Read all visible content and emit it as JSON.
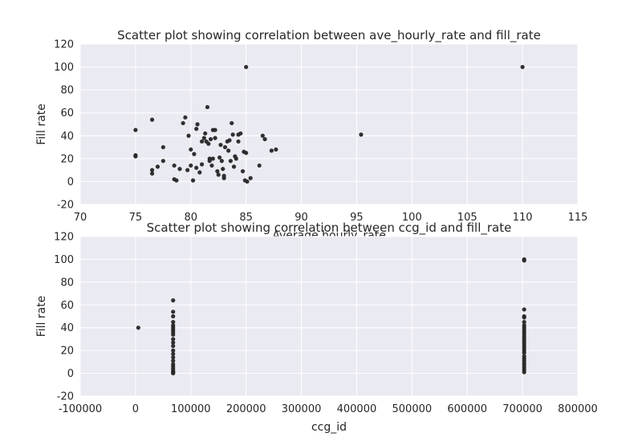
{
  "colors": {
    "background": "#eaeaf2",
    "grid": "#ffffff",
    "point": "#262626",
    "text": "#262626"
  },
  "chart_data": [
    {
      "type": "scatter",
      "title": "Scatter plot showing correlation between ave_hourly_rate and fill_rate",
      "xlabel": "Average hourly_rate",
      "ylabel": "Fill rate",
      "xlim": [
        70,
        115
      ],
      "ylim": [
        -20,
        120
      ],
      "xticks": [
        70,
        75,
        80,
        85,
        90,
        95,
        100,
        105,
        110,
        115
      ],
      "yticks": [
        -20,
        0,
        20,
        40,
        60,
        80,
        100,
        120
      ],
      "grid": true,
      "points": [
        [
          75.0,
          45
        ],
        [
          75.0,
          23
        ],
        [
          75.0,
          22
        ],
        [
          76.5,
          54
        ],
        [
          76.5,
          10
        ],
        [
          76.5,
          7
        ],
        [
          77.0,
          13
        ],
        [
          77.5,
          30
        ],
        [
          77.5,
          18
        ],
        [
          78.5,
          14
        ],
        [
          78.5,
          2
        ],
        [
          78.7,
          1
        ],
        [
          79.0,
          11
        ],
        [
          79.3,
          51
        ],
        [
          79.5,
          56
        ],
        [
          79.7,
          10
        ],
        [
          79.8,
          40
        ],
        [
          80.0,
          28
        ],
        [
          80.0,
          14
        ],
        [
          80.2,
          1
        ],
        [
          80.3,
          24
        ],
        [
          80.5,
          46
        ],
        [
          80.5,
          12
        ],
        [
          80.6,
          50
        ],
        [
          80.8,
          8
        ],
        [
          81.0,
          15
        ],
        [
          81.0,
          35
        ],
        [
          81.2,
          38
        ],
        [
          81.3,
          42
        ],
        [
          81.4,
          35
        ],
        [
          81.5,
          65
        ],
        [
          81.6,
          33
        ],
        [
          81.7,
          20
        ],
        [
          81.7,
          18
        ],
        [
          81.8,
          37
        ],
        [
          81.9,
          14
        ],
        [
          82.0,
          45
        ],
        [
          82.0,
          20
        ],
        [
          82.2,
          38
        ],
        [
          82.2,
          45
        ],
        [
          82.4,
          9
        ],
        [
          82.5,
          6
        ],
        [
          82.6,
          21
        ],
        [
          82.7,
          32
        ],
        [
          82.8,
          18
        ],
        [
          82.9,
          11
        ],
        [
          83.0,
          5
        ],
        [
          83.0,
          3
        ],
        [
          83.1,
          30
        ],
        [
          83.3,
          35
        ],
        [
          83.4,
          27
        ],
        [
          83.5,
          36
        ],
        [
          83.6,
          18
        ],
        [
          83.7,
          51
        ],
        [
          83.8,
          41
        ],
        [
          83.9,
          13
        ],
        [
          84.0,
          22
        ],
        [
          84.1,
          20
        ],
        [
          84.3,
          41
        ],
        [
          84.3,
          35
        ],
        [
          84.5,
          42
        ],
        [
          84.7,
          9
        ],
        [
          84.8,
          26
        ],
        [
          84.9,
          1
        ],
        [
          85.0,
          100
        ],
        [
          85.0,
          25
        ],
        [
          85.1,
          0
        ],
        [
          85.4,
          3
        ],
        [
          86.2,
          14
        ],
        [
          86.5,
          40
        ],
        [
          86.7,
          37
        ],
        [
          87.3,
          27
        ],
        [
          87.7,
          28
        ],
        [
          95.4,
          41
        ],
        [
          110.0,
          100
        ]
      ]
    },
    {
      "type": "scatter",
      "title": "Scatter plot showing correlation between ccg_id and fill_rate",
      "xlabel": "ccg_id",
      "ylabel": "Fill rate",
      "xlim": [
        -100000,
        800000
      ],
      "ylim": [
        -20,
        120
      ],
      "xticks": [
        -100000,
        0,
        100000,
        200000,
        300000,
        400000,
        500000,
        600000,
        700000,
        800000
      ],
      "yticks": [
        -20,
        0,
        20,
        40,
        60,
        80,
        100,
        120
      ],
      "grid": true,
      "points": [
        [
          5000,
          40
        ],
        [
          68000,
          64
        ],
        [
          68000,
          54
        ],
        [
          68000,
          50
        ],
        [
          68000,
          45
        ],
        [
          68000,
          42
        ],
        [
          68000,
          40
        ],
        [
          68000,
          38
        ],
        [
          68000,
          36
        ],
        [
          68000,
          34
        ],
        [
          68000,
          30
        ],
        [
          68000,
          27
        ],
        [
          68000,
          24
        ],
        [
          68000,
          20
        ],
        [
          68000,
          17
        ],
        [
          68000,
          14
        ],
        [
          68000,
          11
        ],
        [
          68000,
          8
        ],
        [
          68000,
          6
        ],
        [
          68000,
          4
        ],
        [
          68000,
          2
        ],
        [
          68000,
          1
        ],
        [
          68000,
          0
        ],
        [
          703000,
          100
        ],
        [
          703000,
          99
        ],
        [
          703000,
          56
        ],
        [
          703000,
          50
        ],
        [
          703000,
          49
        ],
        [
          703000,
          45
        ],
        [
          703000,
          42
        ],
        [
          703000,
          40
        ],
        [
          703000,
          38
        ],
        [
          703000,
          36
        ],
        [
          703000,
          34
        ],
        [
          703000,
          32
        ],
        [
          703000,
          30
        ],
        [
          703000,
          28
        ],
        [
          703000,
          26
        ],
        [
          703000,
          24
        ],
        [
          703000,
          22
        ],
        [
          703000,
          20
        ],
        [
          703000,
          18
        ],
        [
          703000,
          15
        ],
        [
          703000,
          13
        ],
        [
          703000,
          11
        ],
        [
          703000,
          9
        ],
        [
          703000,
          7
        ],
        [
          703000,
          5
        ],
        [
          703000,
          3
        ],
        [
          703000,
          1
        ]
      ]
    }
  ]
}
